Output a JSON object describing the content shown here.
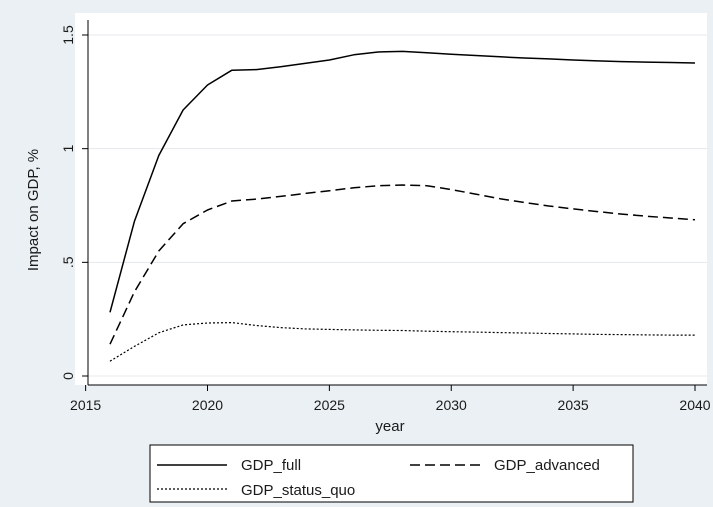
{
  "chart_data": {
    "type": "line",
    "xlabel": "year",
    "ylabel": "Impact on GDP, %",
    "xlim": [
      2015.5,
      2040
    ],
    "ylim": [
      0,
      1.5
    ],
    "xticks": [
      2015,
      2020,
      2025,
      2030,
      2035,
      2040
    ],
    "xtick_labels": [
      "2015",
      "2020",
      "2025",
      "2030",
      "2035",
      "2040"
    ],
    "yticks": [
      0,
      0.5,
      1,
      1.5
    ],
    "ytick_labels": [
      "0",
      ".5",
      "1",
      "1.5"
    ],
    "grid": "horizontal",
    "legend_position": "bottom",
    "x": [
      2016,
      2017,
      2018,
      2019,
      2020,
      2021,
      2022,
      2023,
      2024,
      2025,
      2026,
      2027,
      2028,
      2029,
      2030,
      2031,
      2032,
      2033,
      2034,
      2035,
      2036,
      2037,
      2038,
      2039,
      2040
    ],
    "series": [
      {
        "name": "GDP_full",
        "dash": "solid",
        "color": "#000000",
        "values": [
          0.28,
          0.68,
          0.97,
          1.17,
          1.28,
          1.345,
          1.348,
          1.36,
          1.375,
          1.39,
          1.413,
          1.425,
          1.428,
          1.422,
          1.415,
          1.41,
          1.404,
          1.399,
          1.395,
          1.39,
          1.386,
          1.383,
          1.381,
          1.379,
          1.377
        ]
      },
      {
        "name": "GDP_advanced",
        "dash": "dashed",
        "color": "#000000",
        "values": [
          0.14,
          0.37,
          0.55,
          0.67,
          0.73,
          0.77,
          0.778,
          0.79,
          0.803,
          0.815,
          0.828,
          0.837,
          0.84,
          0.837,
          0.82,
          0.8,
          0.78,
          0.763,
          0.748,
          0.735,
          0.723,
          0.712,
          0.703,
          0.695,
          0.687
        ]
      },
      {
        "name": "GDP_status_quo",
        "dash": "dotted",
        "color": "#000000",
        "values": [
          0.065,
          0.13,
          0.19,
          0.225,
          0.233,
          0.235,
          0.222,
          0.213,
          0.207,
          0.205,
          0.203,
          0.201,
          0.2,
          0.197,
          0.195,
          0.193,
          0.191,
          0.189,
          0.187,
          0.185,
          0.183,
          0.182,
          0.181,
          0.18,
          0.18
        ]
      }
    ]
  }
}
